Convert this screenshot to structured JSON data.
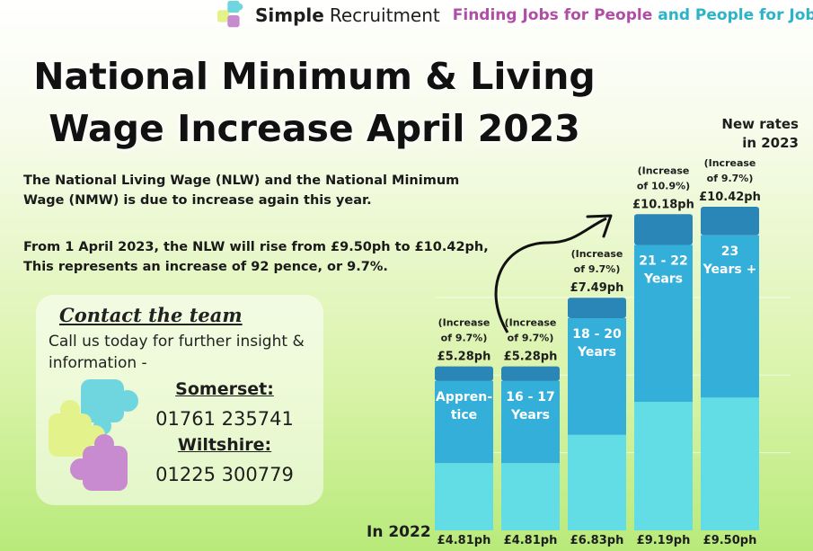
{
  "header": {
    "brand_bold": "Simple",
    "brand_regular": "Recruitment",
    "tagline_a": "Finding Jobs for People",
    "tagline_b": "and People for Jobs"
  },
  "title_line1": "National Minimum & Living",
  "title_line2": "Wage Increase April 2023",
  "new_rates_line1": "New rates",
  "new_rates_line2": "in 2023",
  "paragraph1": "The National Living Wage (NLW) and the National Minimum Wage (NMW) is due to increase again this year.",
  "paragraph2_line1": "From 1 April 2023, the NLW will rise from £9.50ph to £10.42ph,",
  "paragraph2_line2": "This represents an increase of 92 pence, or 9.7%.",
  "contact": {
    "title": "Contact the team",
    "message": "Call us today for further insight & information -",
    "somerset_label": "Somerset:",
    "somerset_phone": "01761 235741",
    "wiltshire_label": "Wiltshire:",
    "wiltshire_phone": "01225 300779"
  },
  "in2022_label": "In 2022",
  "colors": {
    "bar_bottom": "#62dde6",
    "bar_middle": "#33afd9",
    "bar_top": "#2b86b8",
    "puzzle_blue": "#6fd6e0",
    "puzzle_yellow": "#e3f28a",
    "puzzle_purple": "#c98bcf"
  },
  "chart_data": {
    "type": "bar",
    "categories": [
      "Apprentice",
      "16 - 17 Years",
      "18 - 20 Years",
      "21 - 22 Years",
      "23 Years +"
    ],
    "category_labels": [
      [
        "Appren-",
        "tice"
      ],
      [
        "16 - 17",
        "Years"
      ],
      [
        "18 - 20",
        "Years"
      ],
      [
        "21 - 22",
        "Years"
      ],
      [
        "23",
        "Years +"
      ]
    ],
    "series": [
      {
        "name": "In 2022",
        "values": [
          4.81,
          4.81,
          6.83,
          9.19,
          9.5
        ],
        "labels": [
          "£4.81ph",
          "£4.81ph",
          "£6.83ph",
          "£9.19ph",
          "£9.50ph"
        ]
      },
      {
        "name": "New rates in 2023",
        "values": [
          5.28,
          5.28,
          7.49,
          10.18,
          10.42
        ],
        "labels": [
          "£5.28ph",
          "£5.28ph",
          "£7.49ph",
          "£10.18ph",
          "£10.42ph"
        ]
      }
    ],
    "increase_labels": [
      [
        "(Increase",
        "of 9.7%)"
      ],
      [
        "(Increase",
        "of 9.7%)"
      ],
      [
        "(Increase",
        "of 9.7%)"
      ],
      [
        "(Increase",
        "of 10.9%)"
      ],
      [
        "(Increase",
        "of 9.7%)"
      ]
    ],
    "ylim": [
      0,
      10.42
    ],
    "grid": true
  }
}
